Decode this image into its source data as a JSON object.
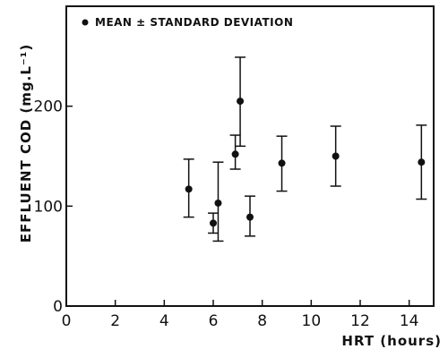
{
  "chart_data": {
    "type": "scatter",
    "title": "",
    "xlabel": "HRT (hours)",
    "ylabel": "EFFLUENT COD (mg.L⁻¹)",
    "xlim": [
      0,
      15
    ],
    "ylim": [
      0,
      300
    ],
    "xticks": [
      0,
      2,
      4,
      6,
      8,
      10,
      12,
      14
    ],
    "yticks": [
      0,
      100,
      200
    ],
    "legend": {
      "text": "MEAN ± STANDARD DEVIATION",
      "placement": "top-left"
    },
    "error_bars": "mean ± standard deviation",
    "points": [
      {
        "x": 5.0,
        "y": 117,
        "lo": 89,
        "hi": 147
      },
      {
        "x": 6.0,
        "y": 83,
        "lo": 73,
        "hi": 93
      },
      {
        "x": 6.2,
        "y": 103,
        "lo": 65,
        "hi": 144
      },
      {
        "x": 6.9,
        "y": 152,
        "lo": 137,
        "hi": 171
      },
      {
        "x": 7.1,
        "y": 205,
        "lo": 160,
        "hi": 249
      },
      {
        "x": 7.5,
        "y": 89,
        "lo": 70,
        "hi": 110
      },
      {
        "x": 8.8,
        "y": 143,
        "lo": 115,
        "hi": 170
      },
      {
        "x": 11.0,
        "y": 150,
        "lo": 120,
        "hi": 180
      },
      {
        "x": 14.5,
        "y": 144,
        "lo": 107,
        "hi": 181
      }
    ]
  }
}
